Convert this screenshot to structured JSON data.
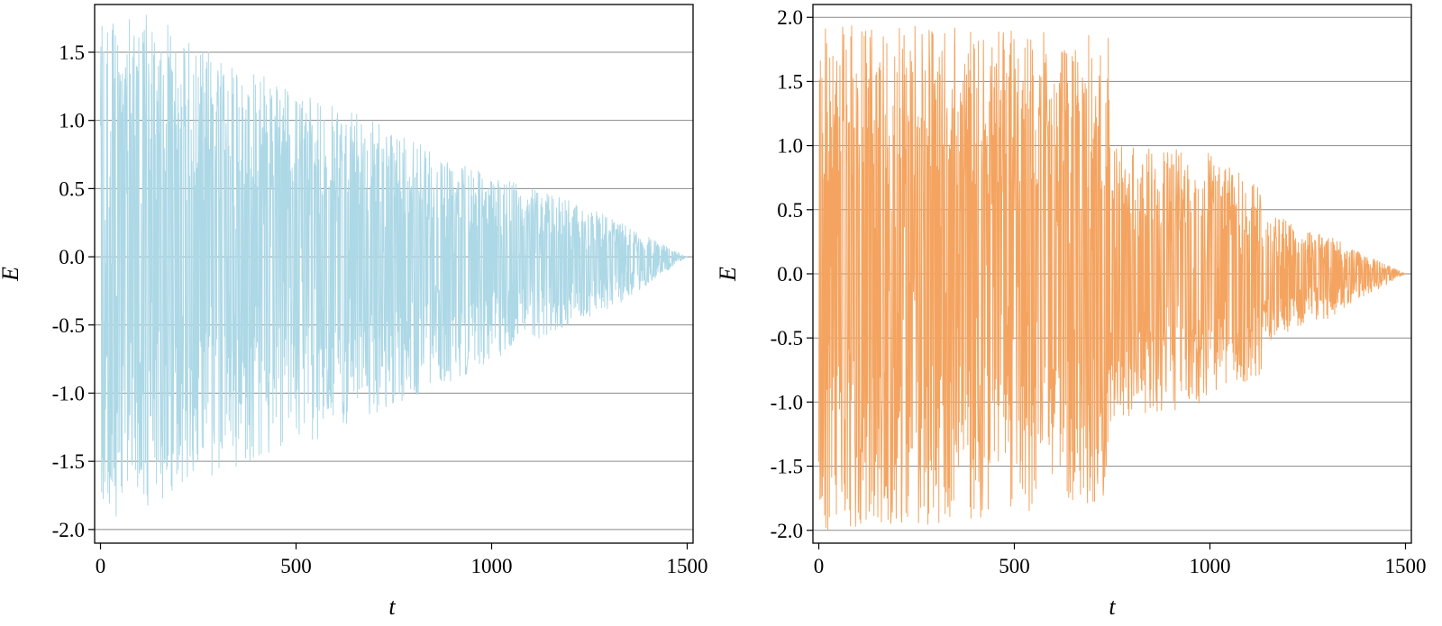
{
  "chart_data": [
    {
      "type": "line",
      "title": "",
      "xlabel": "t",
      "ylabel": "E",
      "xlim": [
        -15,
        1515
      ],
      "ylim": [
        -2.1,
        1.85
      ],
      "xticks": [
        0,
        500,
        1000,
        1500
      ],
      "xtick_labels": [
        "0",
        "500",
        "1000",
        "1500"
      ],
      "yticks": [
        -2.0,
        -1.5,
        -1.0,
        -0.5,
        0.0,
        0.5,
        1.0,
        1.5
      ],
      "ytick_labels": [
        "-2.0",
        "-1.5",
        "-1.0",
        "-0.5",
        "0.0",
        "0.5",
        "1.0",
        "1.5"
      ],
      "grid": "horizontal",
      "legend": "none",
      "series": [
        {
          "color": "#add8e6",
          "description_of_shape": "dense oscillation decaying linearly in amplitude to zero at t=1500",
          "envelope": {
            "t": [
              0,
              150,
              300,
              500,
              750,
              1000,
              1100,
              1300,
              1500
            ],
            "upper": [
              1.75,
              1.78,
              1.45,
              1.25,
              0.92,
              0.58,
              0.52,
              0.3,
              0.0
            ],
            "lower": [
              -1.95,
              -1.8,
              -1.6,
              -1.4,
              -1.1,
              -0.78,
              -0.62,
              -0.4,
              0.0
            ]
          },
          "num_samples": 1500
        }
      ]
    },
    {
      "type": "line",
      "title": "",
      "xlabel": "t",
      "ylabel": "E",
      "xlim": [
        -15,
        1515
      ],
      "ylim": [
        -2.1,
        2.1
      ],
      "xticks": [
        0,
        500,
        1000,
        1500
      ],
      "xtick_labels": [
        "0",
        "500",
        "1000",
        "1500"
      ],
      "yticks": [
        -2.0,
        -1.5,
        -1.0,
        -0.5,
        0.0,
        0.5,
        1.0,
        1.5,
        2.0
      ],
      "ytick_labels": [
        "-2.0",
        "-1.5",
        "-1.0",
        "-0.5",
        "0.0",
        "0.5",
        "1.0",
        "1.5",
        "2.0"
      ],
      "grid": "horizontal",
      "legend": "none",
      "series": [
        {
          "color": "#f4a460",
          "description_of_shape": "dense oscillation, roughly constant amplitude to t≈740, then step down and decay to zero at t=1500",
          "envelope": {
            "t": [
              0,
              300,
              740,
              750,
              1000,
              1130,
              1140,
              1300,
              1500
            ],
            "upper": [
              1.95,
              1.95,
              1.85,
              1.05,
              0.95,
              0.68,
              0.48,
              0.3,
              0.0
            ],
            "lower": [
              -2.0,
              -1.95,
              -1.8,
              -1.25,
              -1.0,
              -0.8,
              -0.55,
              -0.35,
              0.0
            ]
          },
          "num_samples": 1500
        }
      ]
    }
  ]
}
